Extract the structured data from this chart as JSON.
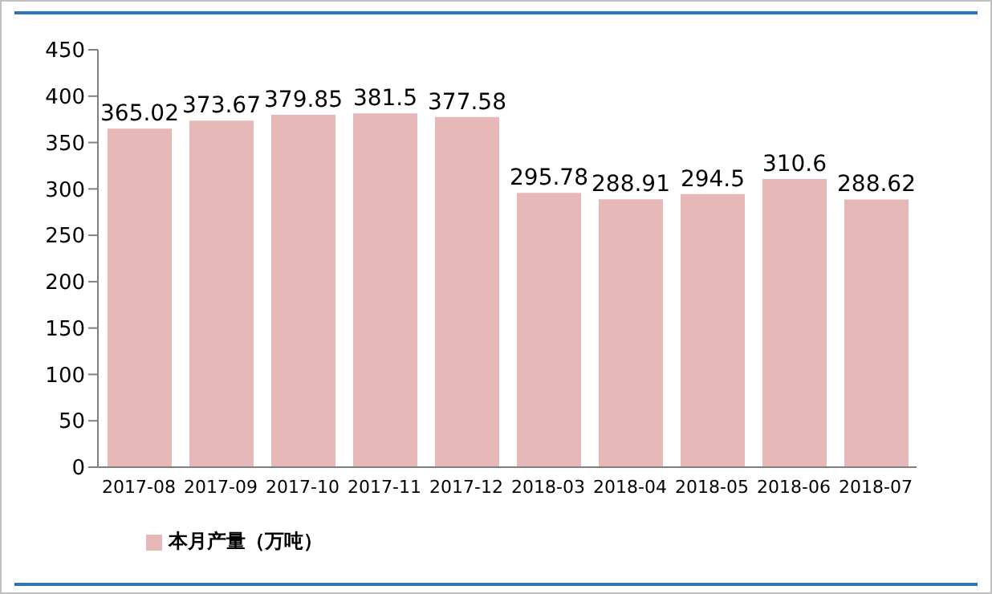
{
  "chart_data": {
    "type": "bar",
    "categories": [
      "2017-08",
      "2017-09",
      "2017-10",
      "2017-11",
      "2017-12",
      "2018-03",
      "2018-04",
      "2018-05",
      "2018-06",
      "2018-07"
    ],
    "series": [
      {
        "name": "本月产量（万吨）",
        "color": "#e6b9b8",
        "values": [
          365.02,
          373.67,
          379.85,
          381.5,
          377.58,
          295.78,
          288.91,
          294.5,
          310.6,
          288.62
        ]
      }
    ],
    "ylim": [
      0,
      450
    ],
    "yticks": [
      0,
      50,
      100,
      150,
      200,
      250,
      300,
      350,
      400,
      450
    ],
    "grid": false,
    "legend": "bottom left",
    "data_labels": true
  }
}
